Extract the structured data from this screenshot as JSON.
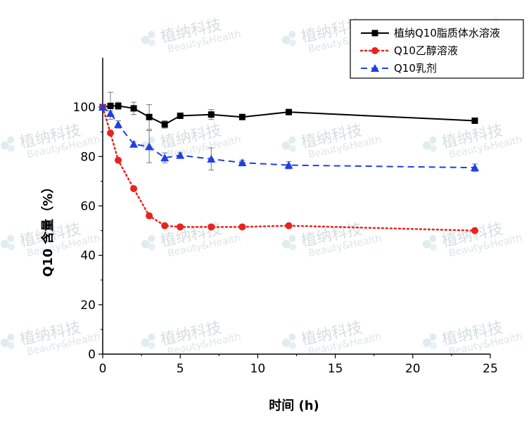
{
  "chart_data": {
    "type": "line",
    "title": "",
    "xlabel": "时间 (h)",
    "ylabel": "Q10 含量（%）",
    "xlim": [
      0,
      25
    ],
    "ylim": [
      0,
      120
    ],
    "xticks": [
      0,
      5,
      10,
      15,
      20,
      25
    ],
    "yticks": [
      0,
      20,
      40,
      60,
      80,
      100
    ],
    "grid": false,
    "legend_position": "top-right",
    "series": [
      {
        "name": "植纳Q10脂质体水溶液",
        "color": "#000000",
        "marker": "square",
        "line_style": "solid",
        "x": [
          0,
          0.5,
          1,
          2,
          3,
          4,
          5,
          7,
          9,
          12,
          24
        ],
        "y": [
          100,
          100.5,
          100.5,
          99.5,
          96,
          93,
          96.5,
          97,
          96,
          98,
          94.5
        ],
        "error": [
          0,
          5.5,
          1.5,
          2.5,
          5,
          1.5,
          1,
          2,
          1,
          1,
          1
        ]
      },
      {
        "name": "Q10乙醇溶液",
        "color": "#e8231f",
        "marker": "circle",
        "line_style": "dotted",
        "x": [
          0,
          0.5,
          1,
          2,
          3,
          4,
          5,
          7,
          9,
          12,
          24
        ],
        "y": [
          100,
          89.5,
          78.5,
          67,
          56,
          52,
          51.5,
          51.5,
          51.5,
          52,
          50
        ],
        "error": [
          0,
          0.5,
          0.5,
          0.5,
          0.5,
          0.5,
          0.5,
          0.5,
          0.5,
          0.5,
          0.5
        ]
      },
      {
        "name": "Q10乳剂",
        "color": "#1f3fe6",
        "marker": "triangle",
        "line_style": "dashed",
        "x": [
          0,
          0.5,
          1,
          2,
          3,
          4,
          5,
          7,
          9,
          12,
          24
        ],
        "y": [
          100,
          97.5,
          93,
          85,
          84,
          79.5,
          80.5,
          79,
          77.5,
          76.5,
          75.5
        ],
        "error": [
          0,
          1,
          1.5,
          1,
          6.5,
          2,
          1,
          4.5,
          1,
          1.5,
          1.5
        ]
      }
    ]
  },
  "watermark": {
    "text": "植纳科技",
    "sub": "Beauty&Health"
  }
}
